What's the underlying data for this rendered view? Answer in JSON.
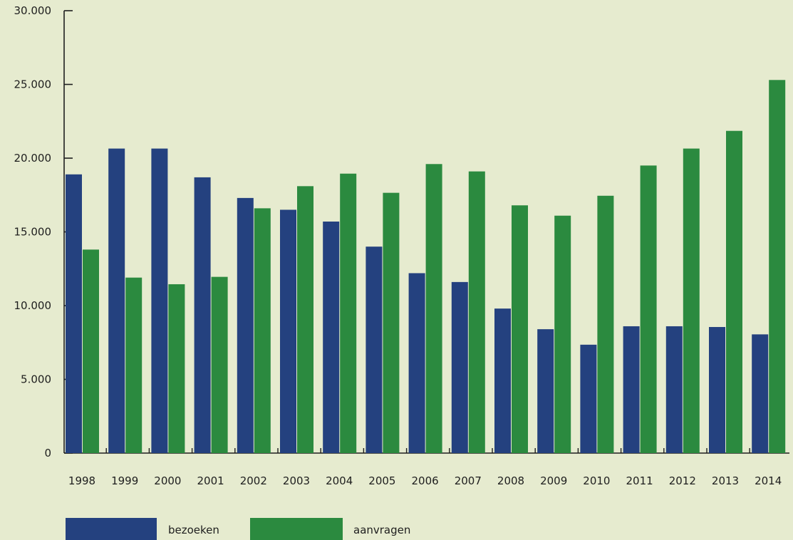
{
  "chart_data": {
    "type": "bar",
    "title": "",
    "xlabel": "",
    "ylabel": "",
    "categories": [
      "1998",
      "1999",
      "2000",
      "2001",
      "2002",
      "2003",
      "2004",
      "2005",
      "2006",
      "2007",
      "2008",
      "2009",
      "2010",
      "2011",
      "2012",
      "2013",
      "2014"
    ],
    "series": [
      {
        "name": "bezoeken",
        "color": "#24417f",
        "values": [
          18900,
          20650,
          20650,
          18700,
          17300,
          16500,
          15700,
          14000,
          12200,
          11600,
          9800,
          8400,
          7350,
          8600,
          8600,
          8550,
          8050
        ]
      },
      {
        "name": "aanvragen",
        "color": "#2b8a3f",
        "values": [
          13800,
          11900,
          11450,
          11950,
          16600,
          18100,
          18950,
          17650,
          19600,
          19100,
          16800,
          16100,
          17450,
          19500,
          20650,
          21850,
          25300
        ]
      }
    ],
    "ylim": [
      0,
      30000
    ],
    "yticks": [
      0,
      5000,
      10000,
      15000,
      20000,
      25000,
      30000
    ],
    "ytick_labels": [
      "0",
      "5.000",
      "10.000",
      "15.000",
      "20.000",
      "25.000",
      "30.000"
    ],
    "grid": false,
    "legend_position": "bottom-left"
  }
}
